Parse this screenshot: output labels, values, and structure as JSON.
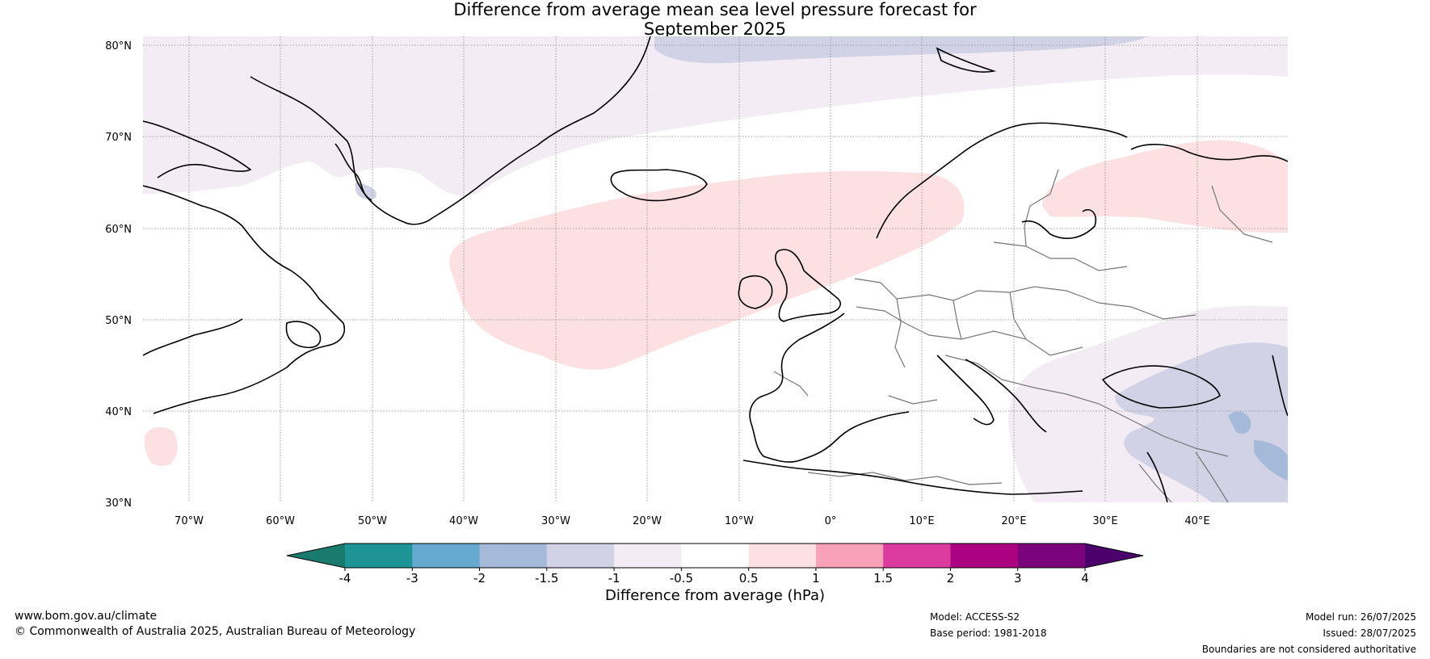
{
  "title": {
    "line1": "Difference from average mean sea level pressure forecast for",
    "line2": "September 2025"
  },
  "map": {
    "lat_labels": [
      "80°N",
      "70°N",
      "60°N",
      "50°N",
      "40°N",
      "30°N"
    ],
    "lon_labels": [
      "70°W",
      "60°W",
      "50°W",
      "40°W",
      "30°W",
      "20°W",
      "10°W",
      "0°",
      "10°E",
      "20°E",
      "30°E",
      "40°E"
    ]
  },
  "colorbar": {
    "label": "Difference from average (hPa)",
    "ticks": [
      "-4",
      "-3",
      "-2",
      "-1.5",
      "-1",
      "-0.5",
      "0.5",
      "1",
      "1.5",
      "2",
      "3",
      "4"
    ],
    "colors": [
      "#1a7a6e",
      "#1e9496",
      "#66a9d0",
      "#a5b9d9",
      "#d1d2e6",
      "#f3ecf5",
      "#ffffff",
      "#fde0e1",
      "#f8a1b8",
      "#dd3c9f",
      "#ab0282",
      "#7b037c",
      "#4c006b"
    ]
  },
  "footer": {
    "website": "www.bom.gov.au/climate",
    "copyright": "© Commonwealth of Australia 2025, Australian Bureau of Meteorology",
    "model": "Model: ACCESS-S2",
    "base_period": "Base period: 1981-2018",
    "model_run": "Model run: 26/07/2025",
    "issued": "Issued: 28/07/2025",
    "disclaimer": "Boundaries are not considered authoritative"
  }
}
